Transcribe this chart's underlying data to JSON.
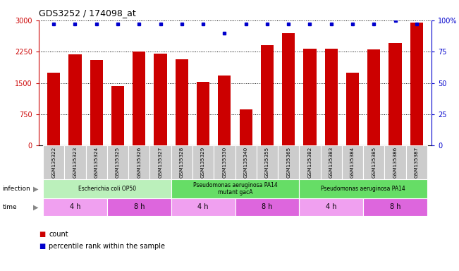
{
  "title": "GDS3252 / 174098_at",
  "samples": [
    "GSM135322",
    "GSM135323",
    "GSM135324",
    "GSM135325",
    "GSM135326",
    "GSM135327",
    "GSM135328",
    "GSM135329",
    "GSM135330",
    "GSM135340",
    "GSM135355",
    "GSM135365",
    "GSM135382",
    "GSM135383",
    "GSM135384",
    "GSM135385",
    "GSM135386",
    "GSM135387"
  ],
  "bar_heights": [
    1750,
    2180,
    2050,
    1420,
    2260,
    2210,
    2060,
    1530,
    1680,
    870,
    2400,
    2700,
    2320,
    2320,
    1750,
    2300,
    2460,
    2950
  ],
  "percentile_ranks": [
    97,
    97,
    97,
    97,
    97,
    97,
    97,
    97,
    90,
    97,
    97,
    97,
    97,
    97,
    97,
    97,
    100,
    97
  ],
  "bar_color": "#cc0000",
  "dot_color": "#0000cc",
  "ylim_left": [
    0,
    3000
  ],
  "ylim_right": [
    0,
    100
  ],
  "yticks_left": [
    0,
    750,
    1500,
    2250,
    3000
  ],
  "ytick_labels_left": [
    "0",
    "750",
    "1500",
    "2250",
    "3000"
  ],
  "ytick_labels_right": [
    "0",
    "25",
    "50",
    "75",
    "100%"
  ],
  "infection_groups": [
    {
      "label": "Escherichia coli OP50",
      "start": 0,
      "end": 5,
      "color": "#bbf0bb"
    },
    {
      "label": "Pseudomonas aeruginosa PA14\nmutant gacA",
      "start": 6,
      "end": 11,
      "color": "#66dd66"
    },
    {
      "label": "Pseudomonas aeruginosa PA14",
      "start": 12,
      "end": 17,
      "color": "#66dd66"
    }
  ],
  "time_groups": [
    {
      "label": "4 h",
      "start": 0,
      "end": 2,
      "color": "#f0a0f0"
    },
    {
      "label": "8 h",
      "start": 3,
      "end": 5,
      "color": "#dd66dd"
    },
    {
      "label": "4 h",
      "start": 6,
      "end": 8,
      "color": "#f0a0f0"
    },
    {
      "label": "8 h",
      "start": 9,
      "end": 11,
      "color": "#dd66dd"
    },
    {
      "label": "4 h",
      "start": 12,
      "end": 14,
      "color": "#f0a0f0"
    },
    {
      "label": "8 h",
      "start": 15,
      "end": 17,
      "color": "#dd66dd"
    }
  ],
  "legend_count_color": "#cc0000",
  "legend_dot_color": "#0000cc",
  "xtick_bg_color": "#cccccc",
  "xtick_border_color": "#ffffff"
}
